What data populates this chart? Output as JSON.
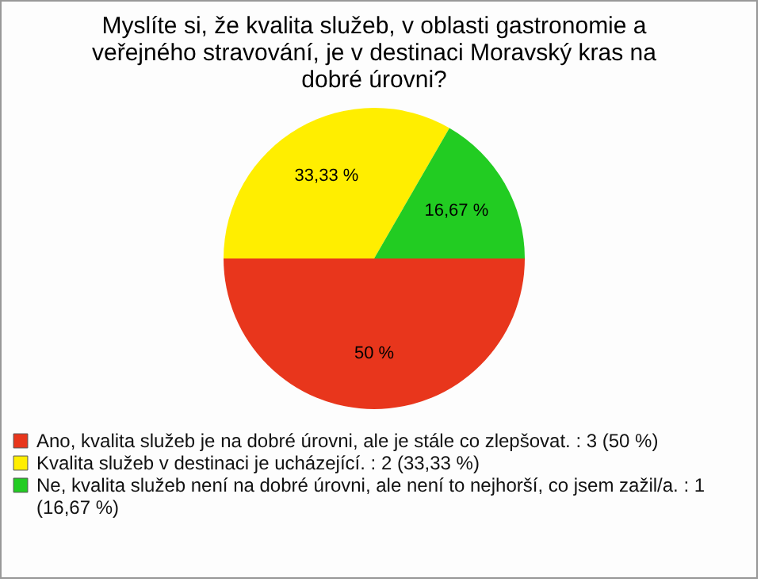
{
  "chart_data": {
    "type": "pie",
    "title": "Myslíte si, že kvalita služeb, v oblasti gastronomie a veřejného stravování, je v destinaci Moravský kras na dobré úrovni?",
    "categories": [
      "Ano, kvalita služeb je na dobré úrovni, ale je stále co zlepšovat. : 3 (50 %)",
      "Kvalita služeb v destinaci je ucházející. : 2 (33,33 %)",
      "Ne, kvalita služeb není na dobré úrovni, ale není to nejhorší, co jsem zažil/a. : 1 (16,67 %)"
    ],
    "values": [
      50,
      33.33,
      16.67
    ],
    "value_labels": [
      "50 %",
      "33,33 %",
      "16,67 %"
    ],
    "colors": [
      "#e8361c",
      "#ffee00",
      "#22cc22"
    ],
    "legend": "bottom"
  }
}
